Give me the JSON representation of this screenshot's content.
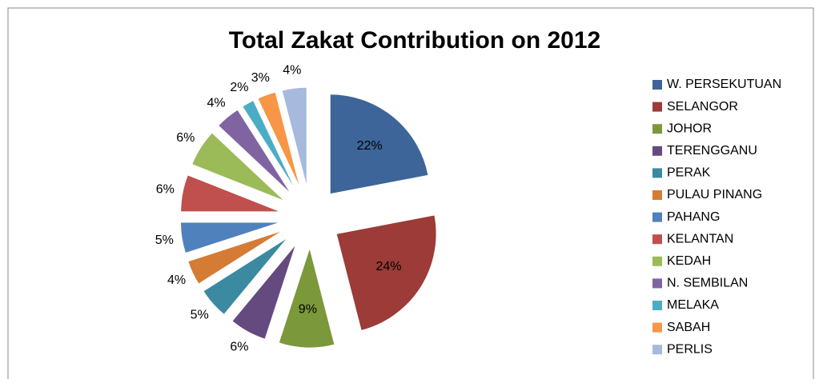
{
  "chart_data": {
    "type": "pie",
    "title": "Total Zakat Contribution on 2012",
    "categories": [
      "W. PERSEKUTUAN",
      "SELANGOR",
      "JOHOR",
      "TERENGGANU",
      "PERAK",
      "PULAU PINANG",
      "PAHANG",
      "KELANTAN",
      "KEDAH",
      "N. SEMBILAN",
      "MELAKA",
      "SABAH",
      "PERLIS"
    ],
    "values": [
      22,
      24,
      9,
      6,
      5,
      4,
      5,
      6,
      6,
      4,
      2,
      3,
      4
    ],
    "value_labels": [
      "22%",
      "24%",
      "9%",
      "6%",
      "5%",
      "4%",
      "5%",
      "6%",
      "6%",
      "4%",
      "2%",
      "3%",
      "4%"
    ],
    "colors": [
      "#3d6599",
      "#9c3b37",
      "#7b983b",
      "#654a80",
      "#3b8aa1",
      "#d47b34",
      "#4f81bd",
      "#c0504d",
      "#9bbb59",
      "#8064a2",
      "#4bacc6",
      "#f79646",
      "#a7b9dc"
    ],
    "legend": "right"
  }
}
